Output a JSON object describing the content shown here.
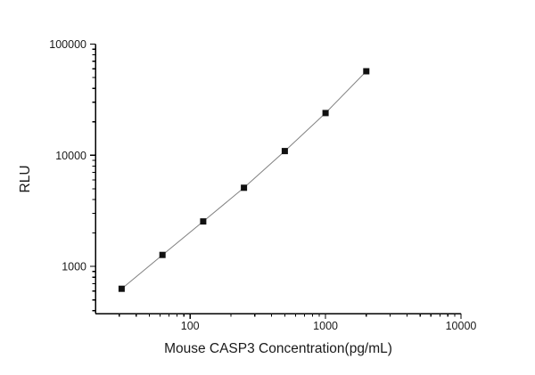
{
  "figure": {
    "background": "#ffffff"
  },
  "chart_data": {
    "type": "scatter",
    "title": "",
    "xlabel": "Mouse CASP3 Concentration(pg/mL)",
    "ylabel": "RLU",
    "x_scale": "log",
    "y_scale": "log",
    "xlim": [
      20,
      10000
    ],
    "ylim": [
      377,
      100000
    ],
    "x_major_ticks": [
      100,
      1000,
      10000
    ],
    "y_major_ticks": [
      1000,
      10000,
      100000
    ],
    "grid": false,
    "legend": "none",
    "series": [
      {
        "x": [
          31.25,
          62.5,
          125,
          250,
          500,
          1000,
          2000
        ],
        "y": [
          630,
          1270,
          2540,
          5100,
          10900,
          24000,
          57000
        ]
      }
    ],
    "marker_shape": "square",
    "marker_size": 7,
    "marker_color": "#111111",
    "line_color": "#808080",
    "line_width": 1,
    "axis_color": "#000000"
  }
}
